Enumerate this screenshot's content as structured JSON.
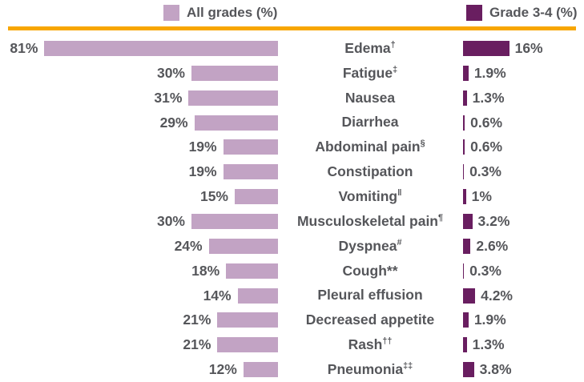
{
  "colors": {
    "all_grades_bar": "#C2A3C4",
    "grade_3_4_bar": "#691E60",
    "divider_line": "#F7A600",
    "text": "#55565A",
    "background": "#FFFFFF"
  },
  "chart_data": {
    "type": "bar",
    "variant": "tornado",
    "orientation": "horizontal",
    "legend_position": "top",
    "grid": false,
    "value_unit": "%",
    "xlim_each_side": [
      0,
      81
    ],
    "series": [
      {
        "name": "All grades (%)",
        "color": "#C2A3C4",
        "side": "left"
      },
      {
        "name": "Grade 3-4 (%)",
        "color": "#691E60",
        "side": "right"
      }
    ],
    "rows": [
      {
        "label": "Edema",
        "marker": "†",
        "all_grades": 81,
        "all_grades_label": "81%",
        "grade_3_4": 16,
        "grade_3_4_label": "16%"
      },
      {
        "label": "Fatigue",
        "marker": "‡",
        "all_grades": 30,
        "all_grades_label": "30%",
        "grade_3_4": 1.9,
        "grade_3_4_label": "1.9%"
      },
      {
        "label": "Nausea",
        "marker": "",
        "all_grades": 31,
        "all_grades_label": "31%",
        "grade_3_4": 1.3,
        "grade_3_4_label": "1.3%"
      },
      {
        "label": "Diarrhea",
        "marker": "",
        "all_grades": 29,
        "all_grades_label": "29%",
        "grade_3_4": 0.6,
        "grade_3_4_label": "0.6%"
      },
      {
        "label": "Abdominal pain",
        "marker": "§",
        "all_grades": 19,
        "all_grades_label": "19%",
        "grade_3_4": 0.6,
        "grade_3_4_label": "0.6%"
      },
      {
        "label": "Constipation",
        "marker": "",
        "all_grades": 19,
        "all_grades_label": "19%",
        "grade_3_4": 0.3,
        "grade_3_4_label": "0.3%"
      },
      {
        "label": "Vomiting",
        "marker": "‖",
        "all_grades": 15,
        "all_grades_label": "15%",
        "grade_3_4": 1,
        "grade_3_4_label": "1%"
      },
      {
        "label": "Musculoskeletal pain",
        "marker": "¶",
        "all_grades": 30,
        "all_grades_label": "30%",
        "grade_3_4": 3.2,
        "grade_3_4_label": "3.2%"
      },
      {
        "label": "Dyspnea",
        "marker": "#",
        "all_grades": 24,
        "all_grades_label": "24%",
        "grade_3_4": 2.6,
        "grade_3_4_label": "2.6%"
      },
      {
        "label": "Cough",
        "marker": "**",
        "all_grades": 18,
        "all_grades_label": "18%",
        "grade_3_4": 0.3,
        "grade_3_4_label": "0.3%"
      },
      {
        "label": "Pleural effusion",
        "marker": "",
        "all_grades": 14,
        "all_grades_label": "14%",
        "grade_3_4": 4.2,
        "grade_3_4_label": "4.2%"
      },
      {
        "label": "Decreased appetite",
        "marker": "",
        "all_grades": 21,
        "all_grades_label": "21%",
        "grade_3_4": 1.9,
        "grade_3_4_label": "1.9%"
      },
      {
        "label": "Rash",
        "marker": "††",
        "all_grades": 21,
        "all_grades_label": "21%",
        "grade_3_4": 1.3,
        "grade_3_4_label": "1.3%"
      },
      {
        "label": "Pneumonia",
        "marker": "‡‡",
        "all_grades": 12,
        "all_grades_label": "12%",
        "grade_3_4": 3.8,
        "grade_3_4_label": "3.8%"
      }
    ]
  }
}
